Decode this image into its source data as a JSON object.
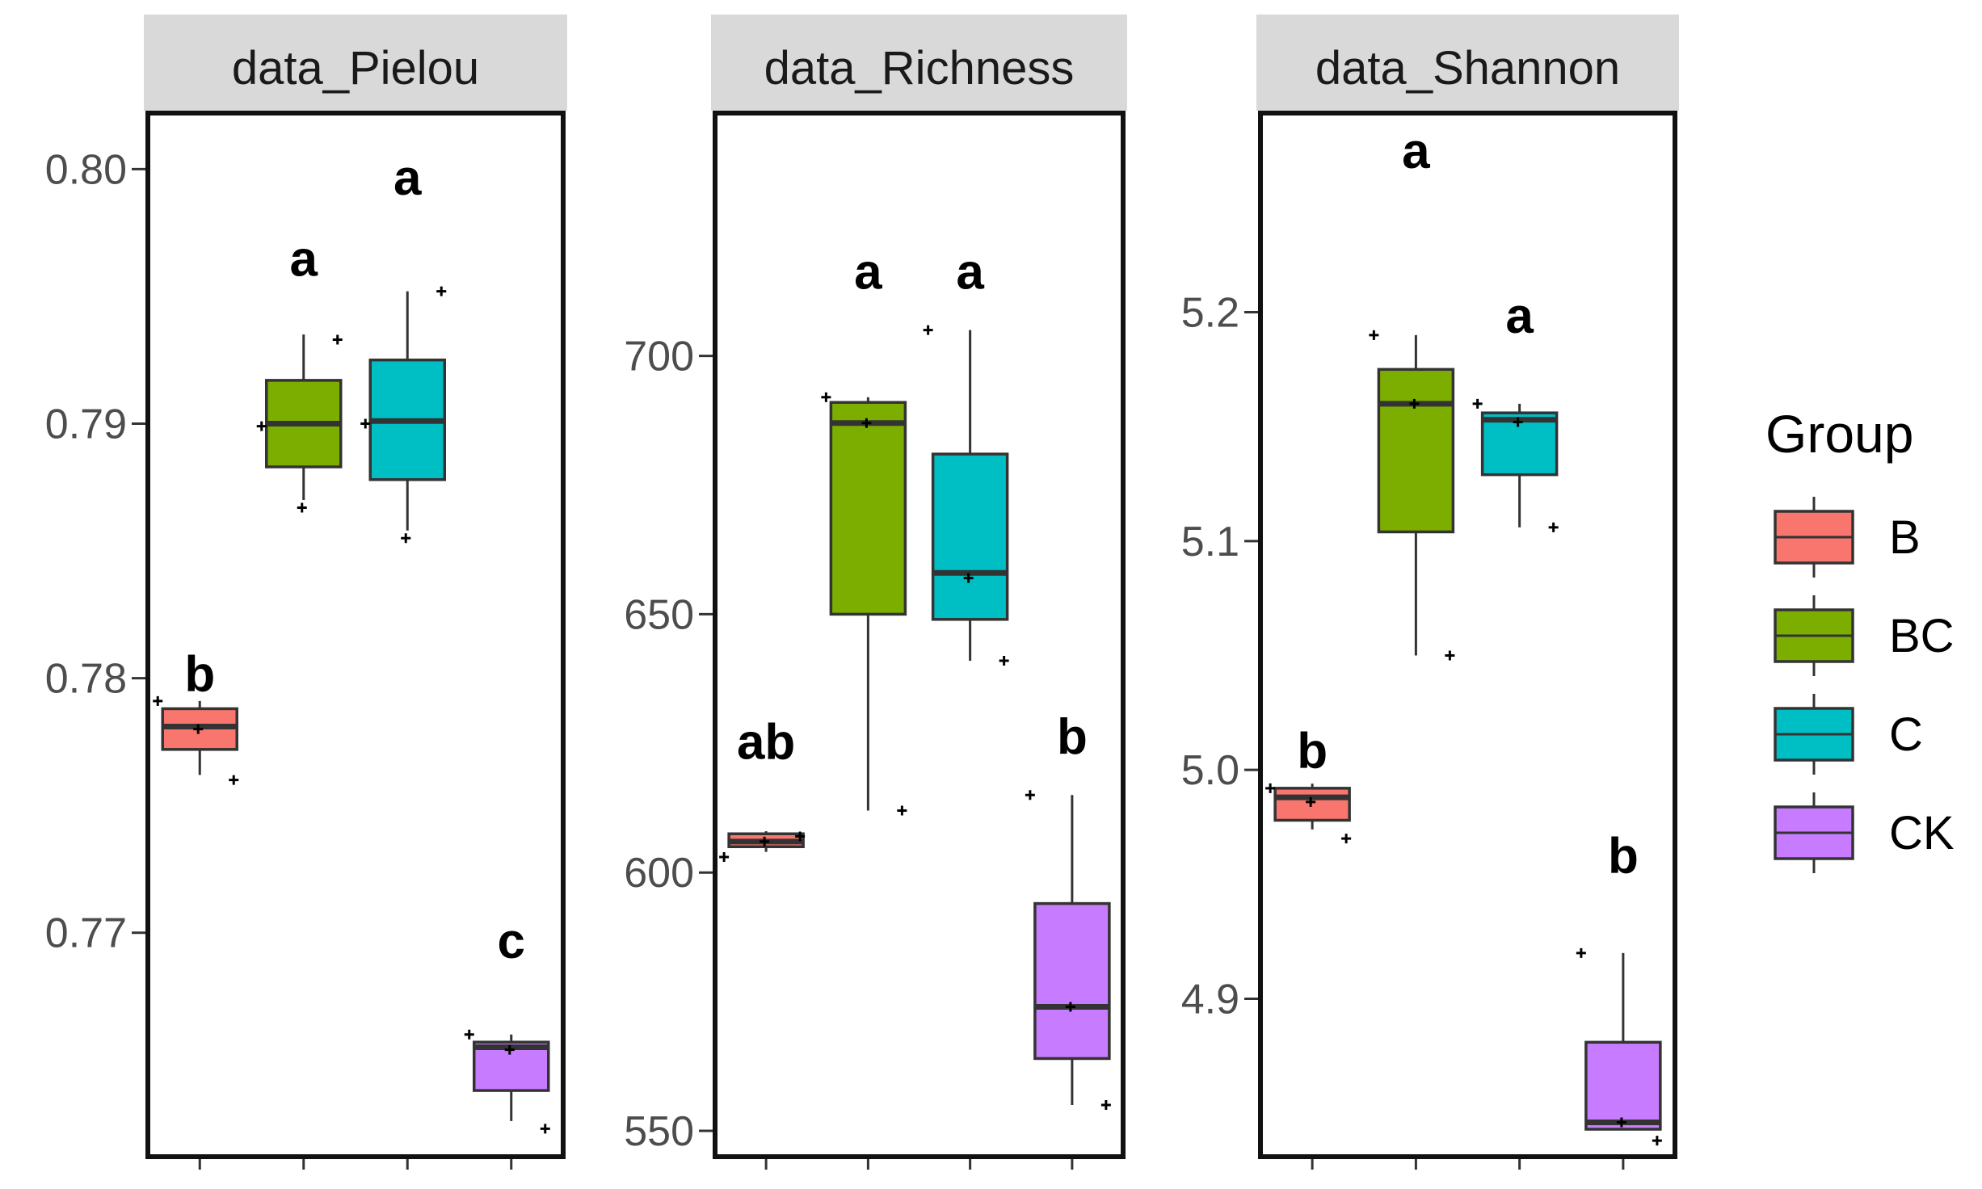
{
  "chart_data": {
    "type": "boxplot",
    "groups": [
      "B",
      "BC",
      "C",
      "CK"
    ],
    "colors": {
      "B": "#F8766D",
      "BC": "#7CAE00",
      "C": "#00BFC4",
      "CK": "#C77CFF"
    },
    "legend": {
      "title": "Group",
      "position": "right",
      "labels": [
        "B",
        "BC",
        "C",
        "CK"
      ]
    },
    "facets": [
      {
        "title": "data_Pielou",
        "ylim": [
          0.7612,
          0.8022
        ],
        "yticks": [
          0.77,
          0.78,
          0.79,
          0.8
        ],
        "ytick_labels": [
          "0.77",
          "0.78",
          "0.79",
          "0.80"
        ],
        "boxes": [
          {
            "group": "B",
            "min": 0.7762,
            "q1": 0.7772,
            "median": 0.7781,
            "q3": 0.7788,
            "max": 0.7791,
            "points": [
              0.7791,
              0.778,
              0.776
            ],
            "label": "b"
          },
          {
            "group": "BC",
            "min": 0.787,
            "q1": 0.7883,
            "median": 0.79,
            "q3": 0.7917,
            "max": 0.7935,
            "points": [
              0.7899,
              0.7867,
              0.7933
            ],
            "label": "a"
          },
          {
            "group": "C",
            "min": 0.7858,
            "q1": 0.7878,
            "median": 0.7901,
            "q3": 0.7925,
            "max": 0.7952,
            "points": [
              0.79,
              0.7855,
              0.7952
            ],
            "label": "a"
          },
          {
            "group": "CK",
            "min": 0.7626,
            "q1": 0.7638,
            "median": 0.7655,
            "q3": 0.7657,
            "max": 0.766,
            "points": [
              0.766,
              0.7654,
              0.7623
            ],
            "label": "c"
          }
        ]
      },
      {
        "title": "data_Richness",
        "ylim": [
          545,
          747
        ],
        "yticks": [
          550,
          600,
          650,
          700
        ],
        "ytick_labels": [
          "550",
          "600",
          "650",
          "700"
        ],
        "boxes": [
          {
            "group": "B",
            "min": 604,
            "q1": 605,
            "median": 606,
            "q3": 607.5,
            "max": 608,
            "points": [
              603,
              606,
              607
            ],
            "label": "ab"
          },
          {
            "group": "BC",
            "min": 612,
            "q1": 650,
            "median": 687,
            "q3": 691,
            "max": 692,
            "points": [
              692,
              687,
              612
            ],
            "label": "a"
          },
          {
            "group": "C",
            "min": 641,
            "q1": 649,
            "median": 658,
            "q3": 681,
            "max": 705,
            "points": [
              705,
              657,
              641
            ],
            "label": "a"
          },
          {
            "group": "CK",
            "min": 555,
            "q1": 564,
            "median": 574,
            "q3": 594,
            "max": 615,
            "points": [
              615,
              574,
              555
            ],
            "label": "b"
          }
        ]
      },
      {
        "title": "data_Shannon",
        "ylim": [
          4.831,
          5.287
        ],
        "yticks": [
          4.9,
          5.0,
          5.1,
          5.2
        ],
        "ytick_labels": [
          "4.9",
          "5.0",
          "5.1",
          "5.2"
        ],
        "boxes": [
          {
            "group": "B",
            "min": 4.974,
            "q1": 4.978,
            "median": 4.988,
            "q3": 4.992,
            "max": 4.994,
            "points": [
              4.992,
              4.986,
              4.97
            ],
            "label": "b"
          },
          {
            "group": "BC",
            "min": 5.05,
            "q1": 5.104,
            "median": 5.16,
            "q3": 5.175,
            "max": 5.19,
            "points": [
              5.19,
              5.16,
              5.05
            ],
            "label": "a"
          },
          {
            "group": "C",
            "min": 5.106,
            "q1": 5.129,
            "median": 5.153,
            "q3": 5.156,
            "max": 5.16,
            "points": [
              5.16,
              5.152,
              5.106
            ],
            "label": "a"
          },
          {
            "group": "CK",
            "min": 4.843,
            "q1": 4.843,
            "median": 4.846,
            "q3": 4.881,
            "max": 4.92,
            "points": [
              4.92,
              4.846,
              4.838
            ],
            "label": "b"
          }
        ]
      }
    ],
    "label_positions": [
      [
        0.7795,
        0.7958,
        0.799,
        0.769
      ],
      [
        622,
        713,
        713,
        623
      ],
      [
        5.001,
        5.263,
        5.191,
        4.955
      ]
    ]
  }
}
